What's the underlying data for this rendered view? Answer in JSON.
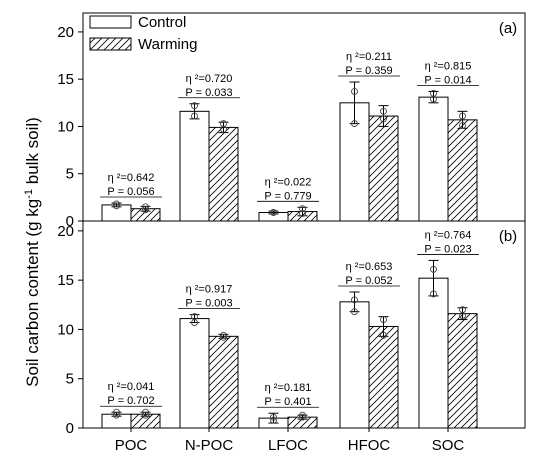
{
  "figure": {
    "ylabel_main": "Soil carbon content (g kg",
    "ylabel_sup": "-1",
    "ylabel_tail": " bulk soil)",
    "legend": [
      {
        "label": "Control",
        "pattern": "open"
      },
      {
        "label": "Warming",
        "pattern": "hatched"
      }
    ],
    "colors": {
      "axis": "#000000",
      "bar_fill": "#ffffff",
      "hatch": "#000000"
    }
  },
  "chart_data": [
    {
      "type": "bar",
      "panel_label": "(a)",
      "categories": [
        "POC",
        "N-POC",
        "LFOC",
        "HFOC",
        "SOC"
      ],
      "ylim": [
        0,
        22
      ],
      "yticks": [
        0,
        5,
        10,
        15,
        20
      ],
      "series": [
        {
          "name": "Control",
          "values": [
            1.7,
            11.6,
            0.9,
            12.5,
            13.1
          ],
          "errors": [
            0.2,
            0.8,
            0.15,
            2.2,
            0.6
          ],
          "points": [
            [
              1.8,
              1.6
            ],
            [
              12.2,
              11.1
            ],
            [
              0.9,
              0.9
            ],
            [
              13.7,
              10.3
            ],
            [
              13.5,
              12.9
            ]
          ]
        },
        {
          "name": "Warming",
          "values": [
            1.3,
            9.9,
            1.0,
            11.1,
            10.7
          ],
          "errors": [
            0.25,
            0.55,
            0.45,
            1.1,
            0.9
          ],
          "points": [
            [
              1.5,
              1.2
            ],
            [
              10.3,
              9.7
            ],
            [
              1.3,
              0.8
            ],
            [
              11.6,
              10.8
            ],
            [
              11.1,
              10.1
            ]
          ]
        }
      ],
      "annotations": [
        {
          "eta": "η ²=0.642",
          "p": "P = 0.056"
        },
        {
          "eta": "η ²=0.720",
          "p": "P = 0.033"
        },
        {
          "eta": "η ²=0.022",
          "p": "P = 0.779"
        },
        {
          "eta": "η ²=0.211",
          "p": "P = 0.359"
        },
        {
          "eta": "η ²=0.815",
          "p": "P = 0.014"
        }
      ]
    },
    {
      "type": "bar",
      "panel_label": "(b)",
      "categories": [
        "POC",
        "N-POC",
        "LFOC",
        "HFOC",
        "SOC"
      ],
      "ylim": [
        0,
        21
      ],
      "yticks": [
        0,
        5,
        10,
        15,
        20
      ],
      "series": [
        {
          "name": "Control",
          "values": [
            1.4,
            11.1,
            1.0,
            12.8,
            15.2
          ],
          "errors": [
            0.2,
            0.4,
            0.5,
            1.0,
            1.8
          ],
          "points": [
            [
              1.6,
              1.3
            ],
            [
              11.3,
              10.7
            ],
            [
              1.1,
              0.8
            ],
            [
              13.0,
              11.8
            ],
            [
              16.1,
              13.6
            ]
          ]
        },
        {
          "name": "Warming",
          "values": [
            1.4,
            9.3,
            1.1,
            10.3,
            11.6
          ],
          "errors": [
            0.2,
            0.2,
            0.2,
            1.0,
            0.6
          ],
          "points": [
            [
              1.6,
              1.3
            ],
            [
              9.4,
              9.2
            ],
            [
              1.3,
              1.1
            ],
            [
              11.0,
              9.4
            ],
            [
              12.0,
              11.4
            ]
          ]
        }
      ],
      "annotations": [
        {
          "eta": "η ²=0.041",
          "p": "P = 0.702"
        },
        {
          "eta": "η ²=0.917",
          "p": "P = 0.003"
        },
        {
          "eta": "η ²=0.181",
          "p": "P = 0.401"
        },
        {
          "eta": "η ²=0.653",
          "p": "P = 0.052"
        },
        {
          "eta": "η ²=0.764",
          "p": "P = 0.023"
        }
      ]
    }
  ]
}
